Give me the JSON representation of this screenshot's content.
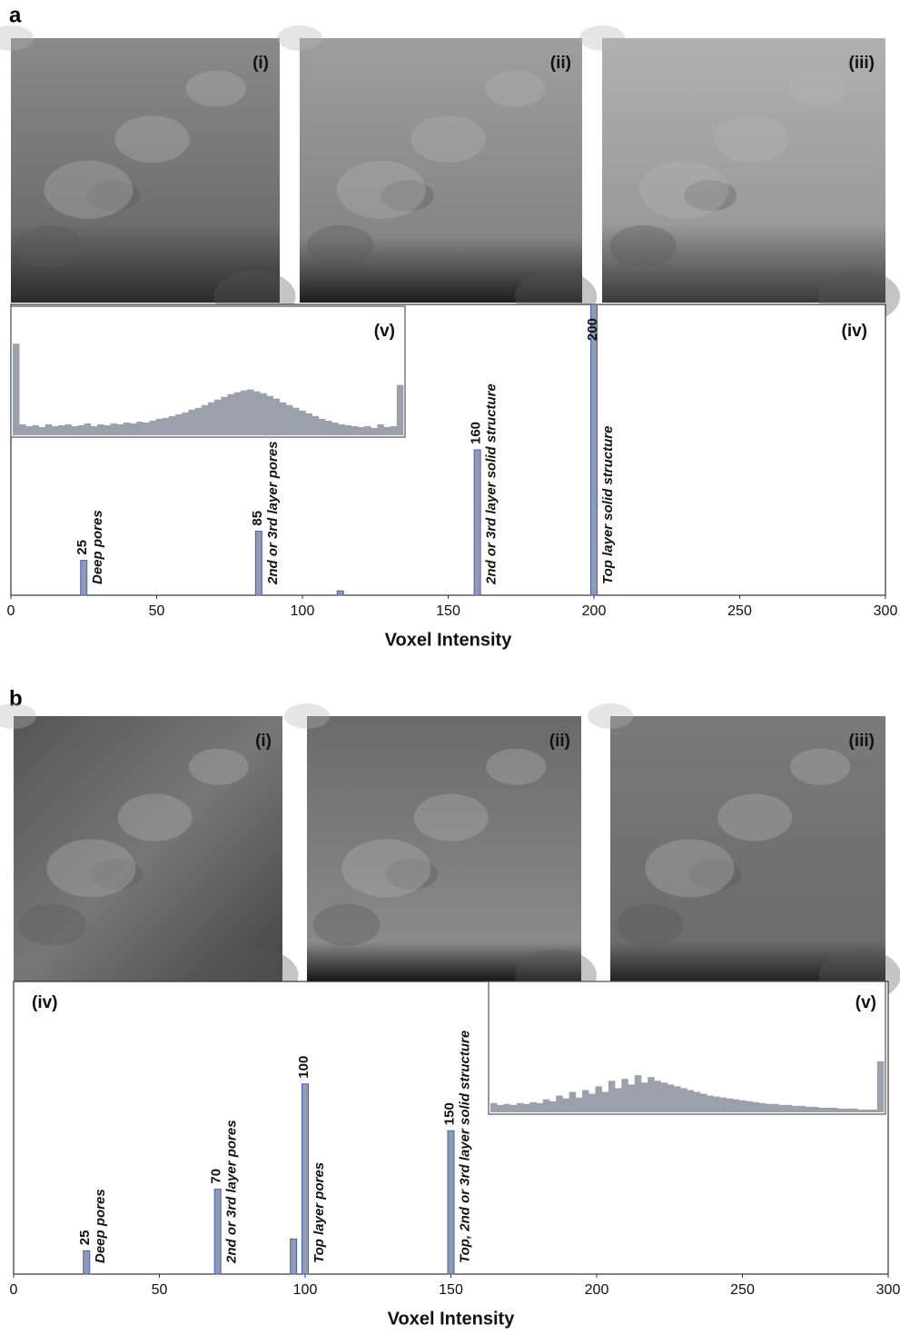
{
  "figure": {
    "panels": [
      {
        "letter": "a",
        "images": [
          "(i)",
          "(ii)",
          "(iii)"
        ]
      },
      {
        "letter": "b",
        "images": [
          "(i)",
          "(ii)",
          "(iii)"
        ]
      }
    ]
  },
  "chart_data": [
    {
      "type": "bar",
      "label": "(iv)",
      "xlabel": "Voxel Intensity",
      "x": [
        25,
        85,
        113,
        160,
        200
      ],
      "values": [
        12,
        22,
        1.5,
        50,
        100
      ],
      "bar_notes": [
        "Deep pores",
        "2nd or 3rd layer pores",
        null,
        "2nd or 3rd layer solid structure",
        "Top layer solid structure"
      ],
      "xlim": [
        0,
        300
      ],
      "xticks": [
        0,
        50,
        100,
        150,
        200,
        250,
        300
      ],
      "ylim": [
        0,
        100
      ],
      "color": "#8f9bb5"
    },
    {
      "type": "inset-bar",
      "label": "(v)",
      "values": [
        100,
        12,
        10,
        11,
        9,
        12,
        10,
        11,
        12,
        10,
        11,
        13,
        10,
        12,
        11,
        13,
        12,
        14,
        13,
        15,
        14,
        16,
        18,
        19,
        21,
        23,
        25,
        28,
        30,
        33,
        36,
        39,
        42,
        45,
        47,
        49,
        50,
        48,
        46,
        43,
        40,
        36,
        33,
        30,
        27,
        24,
        21,
        18,
        16,
        14,
        12,
        11,
        10,
        9,
        10,
        8,
        12,
        9,
        10,
        55
      ],
      "ylim": [
        0,
        100
      ],
      "color": "#9aa1ad"
    },
    {
      "type": "bar",
      "label": "(iv)",
      "xlabel": "Voxel Intensity",
      "x": [
        25,
        70,
        96,
        100,
        150
      ],
      "values": [
        8,
        29,
        12,
        65,
        49
      ],
      "bar_notes": [
        "Deep pores",
        "2nd or 3rd layer pores",
        null,
        "Top layer pores",
        "Top, 2nd or 3rd layer solid structure"
      ],
      "xlim": [
        0,
        300
      ],
      "xticks": [
        0,
        50,
        100,
        150,
        200,
        250,
        300
      ],
      "ylim": [
        0,
        100
      ],
      "color": "#8f9bb5"
    },
    {
      "type": "inset-bar",
      "label": "(v)",
      "values": [
        10,
        8,
        9,
        8,
        10,
        9,
        11,
        10,
        14,
        12,
        18,
        15,
        22,
        16,
        24,
        20,
        28,
        22,
        34,
        26,
        36,
        30,
        40,
        32,
        38,
        34,
        32,
        30,
        28,
        26,
        24,
        22,
        20,
        18,
        17,
        16,
        15,
        14,
        13,
        12,
        11,
        10,
        9,
        9,
        8,
        8,
        7,
        7,
        6,
        6,
        5,
        5,
        5,
        4,
        4,
        4,
        3,
        3,
        3,
        55
      ],
      "ylim": [
        0,
        100
      ],
      "color": "#9aa1ad"
    }
  ]
}
